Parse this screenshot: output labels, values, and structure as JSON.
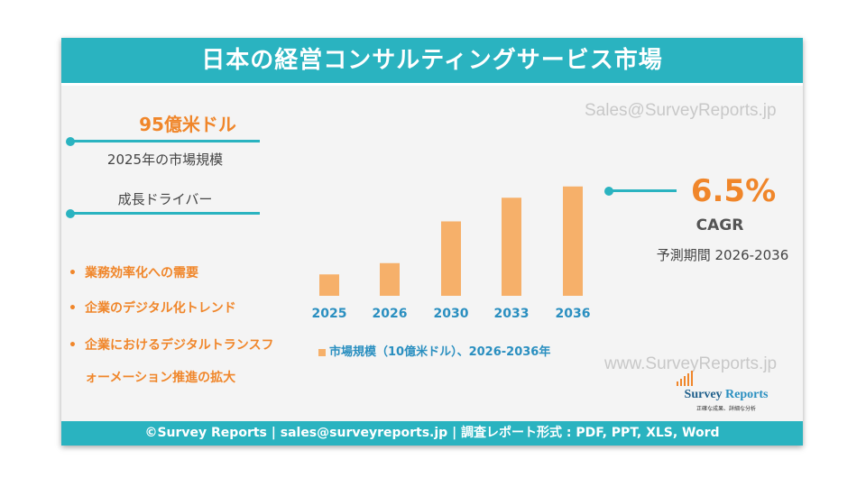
{
  "title": "日本の経営コンサルティングサービス市場",
  "watermarks": {
    "top": "Sales@SurveyReports.jp",
    "bottom": "www.SurveyReports.jp"
  },
  "market": {
    "value": "95億米ドル",
    "label": "2025年の市場規模"
  },
  "drivers": {
    "heading": "成長ドライバー",
    "items": [
      "業務効率化への需要",
      "企業のデジタル化トレンド",
      "企業におけるデジタルトランスフ",
      "ォーメーション推進の拡大"
    ]
  },
  "cagr": {
    "value": "6.5%",
    "label": "CAGR",
    "period": "予測期間 2026-2036"
  },
  "footer": "©Survey Reports | sales@surveyreports.jp |  調査レポート形式 : PDF, PPT, XLS, Word",
  "logo": {
    "name_a": "Survey",
    "name_b": "Reports",
    "tagline": "正確な成果、詳細な分析"
  },
  "colors": {
    "teal": "#2ab3c0",
    "orange": "#f0862a",
    "bar": "#f6b06a",
    "tick": "#2a8fc0"
  },
  "chart_data": {
    "type": "bar",
    "categories": [
      "2025",
      "2026",
      "2030",
      "2033",
      "2036"
    ],
    "series": [
      {
        "name": "市場規模（10億米ドル）、2026-2036年",
        "values": [
          9.5,
          14.5,
          33.0,
          43.5,
          48.5
        ]
      }
    ],
    "ylim": [
      0,
      52
    ],
    "grid": false,
    "legend": "bottom"
  }
}
